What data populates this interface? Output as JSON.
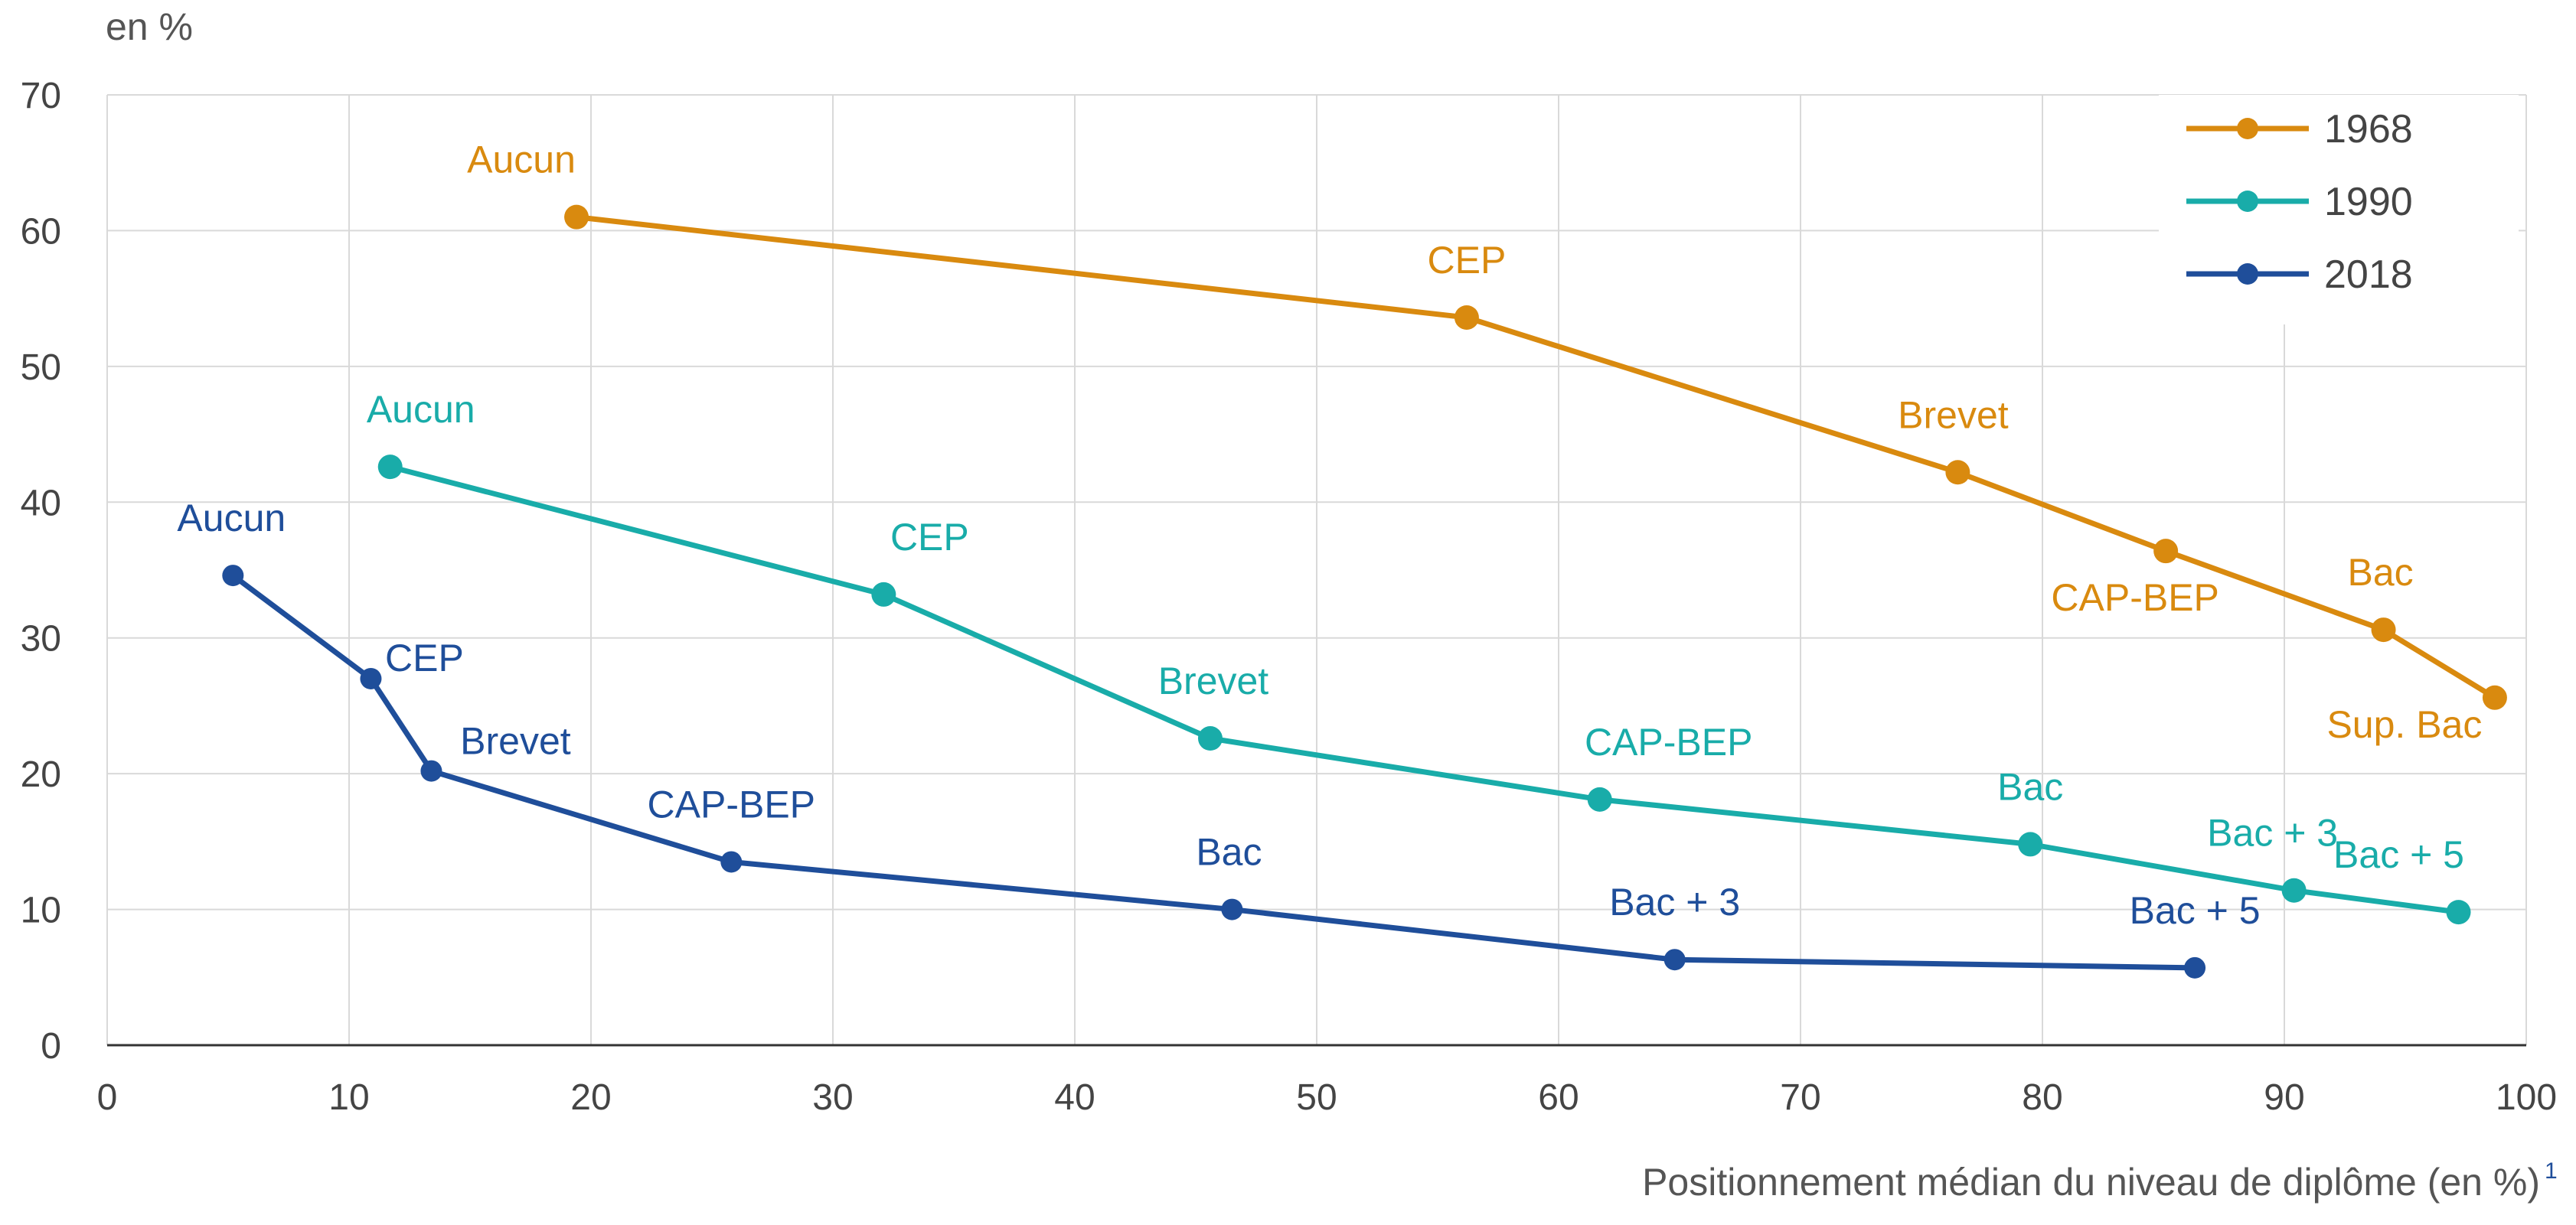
{
  "chart_data": {
    "type": "line",
    "ylabel": "en %",
    "xlabel": "Positionnement médian du niveau de diplôme (en %)",
    "xlabel_footnote": "1",
    "xlim": [
      0,
      100
    ],
    "ylim": [
      0,
      70
    ],
    "xticks": [
      0,
      10,
      20,
      30,
      40,
      50,
      60,
      70,
      80,
      90,
      100
    ],
    "yticks": [
      0,
      10,
      20,
      30,
      40,
      50,
      60,
      70
    ],
    "grid": true,
    "legend_position": "top-right",
    "series": [
      {
        "name": "1968",
        "color": "#d98a0f",
        "points": [
          {
            "x": 19.4,
            "y": 61.0,
            "label": "Aucun"
          },
          {
            "x": 56.2,
            "y": 53.6,
            "label": "CEP"
          },
          {
            "x": 76.5,
            "y": 42.2,
            "label": "Brevet"
          },
          {
            "x": 85.1,
            "y": 36.4,
            "label": "CAP-BEP"
          },
          {
            "x": 94.1,
            "y": 30.6,
            "label": "Bac"
          },
          {
            "x": 98.7,
            "y": 25.6,
            "label": "Sup. Bac"
          }
        ]
      },
      {
        "name": "1990",
        "color": "#19aca9",
        "points": [
          {
            "x": 11.7,
            "y": 42.6,
            "label": "Aucun"
          },
          {
            "x": 32.1,
            "y": 33.2,
            "label": "CEP"
          },
          {
            "x": 45.6,
            "y": 22.6,
            "label": "Brevet"
          },
          {
            "x": 61.7,
            "y": 18.1,
            "label": "CAP-BEP"
          },
          {
            "x": 79.5,
            "y": 14.8,
            "label": "Bac"
          },
          {
            "x": 90.4,
            "y": 11.4,
            "label": "Bac + 3"
          },
          {
            "x": 97.2,
            "y": 9.8,
            "label": "Bac + 5"
          }
        ]
      },
      {
        "name": "2018",
        "color": "#1f4e9a",
        "points": [
          {
            "x": 5.2,
            "y": 34.6,
            "label": "Aucun"
          },
          {
            "x": 10.9,
            "y": 27.0,
            "label": "CEP"
          },
          {
            "x": 13.4,
            "y": 20.2,
            "label": "Brevet"
          },
          {
            "x": 25.8,
            "y": 13.5,
            "label": "CAP-BEP"
          },
          {
            "x": 46.5,
            "y": 10.0,
            "label": "Bac"
          },
          {
            "x": 64.8,
            "y": 6.3,
            "label": "Bac + 3"
          },
          {
            "x": 86.3,
            "y": 5.7,
            "label": "Bac + 5"
          }
        ]
      }
    ]
  }
}
